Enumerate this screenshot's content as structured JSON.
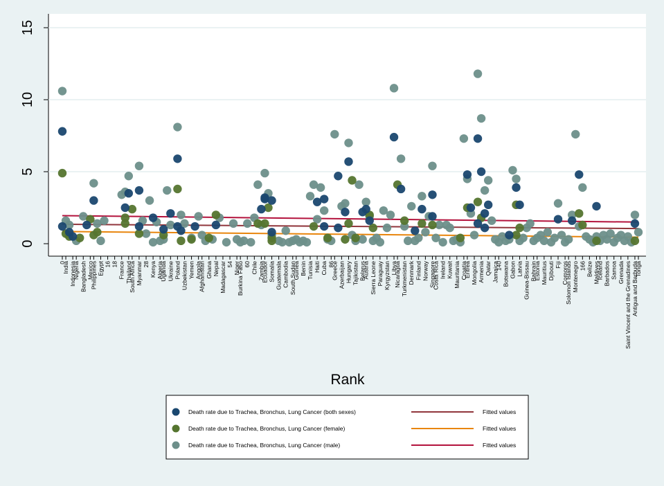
{
  "chart_data": {
    "type": "scatter",
    "xlabel": "Rank",
    "ylabel": "",
    "ylim": [
      0,
      15
    ],
    "yticks": [
      0,
      5,
      10,
      15
    ],
    "grid": true,
    "legend_position": "bottom",
    "x_tick_labels": [
      {
        "rank": 0,
        "label": "0"
      },
      {
        "rank": 1,
        "label": "India"
      },
      {
        "rank": 3,
        "label": "Indonesia"
      },
      {
        "rank": 4,
        "label": "Nigeria"
      },
      {
        "rank": 6,
        "label": "Bangladesh"
      },
      {
        "rank": 8,
        "label": "Mexico"
      },
      {
        "rank": 9,
        "label": "Philippines"
      },
      {
        "rank": 11,
        "label": "Egypt"
      },
      {
        "rank": 13,
        "label": "16"
      },
      {
        "rank": 15,
        "label": "18"
      },
      {
        "rank": 17,
        "label": "France"
      },
      {
        "rank": 19,
        "label": "Thailand"
      },
      {
        "rank": 20,
        "label": "South Africa"
      },
      {
        "rank": 22,
        "label": "Myanmar"
      },
      {
        "rank": 24,
        "label": "28"
      },
      {
        "rank": 26,
        "label": "Kenya"
      },
      {
        "rank": 28,
        "label": "Algeria"
      },
      {
        "rank": 29,
        "label": "Uganda"
      },
      {
        "rank": 31,
        "label": "Ukraine"
      },
      {
        "rank": 33,
        "label": "Poland"
      },
      {
        "rank": 35,
        "label": "Uzbekistan"
      },
      {
        "rank": 37,
        "label": "Yemen"
      },
      {
        "rank": 39,
        "label": "Angola"
      },
      {
        "rank": 40,
        "label": "Afghanistan"
      },
      {
        "rank": 42,
        "label": "Ghana"
      },
      {
        "rank": 44,
        "label": "Nepal"
      },
      {
        "rank": 46,
        "label": "Madagascar"
      },
      {
        "rank": 48,
        "label": "54"
      },
      {
        "rank": 50,
        "label": "Niger"
      },
      {
        "rank": 51,
        "label": "Burkina Faso"
      },
      {
        "rank": 53,
        "label": "60"
      },
      {
        "rank": 55,
        "label": "Chile"
      },
      {
        "rank": 57,
        "label": "Zambia"
      },
      {
        "rank": 58,
        "label": "Ecuador"
      },
      {
        "rank": 60,
        "label": "Somalia"
      },
      {
        "rank": 62,
        "label": "Guatemala"
      },
      {
        "rank": 64,
        "label": "Cambodia"
      },
      {
        "rank": 66,
        "label": "South Sudan"
      },
      {
        "rank": 67,
        "label": "Guinea"
      },
      {
        "rank": 69,
        "label": "Benin"
      },
      {
        "rank": 71,
        "label": "Tunisia"
      },
      {
        "rank": 73,
        "label": "Haiti"
      },
      {
        "rank": 75,
        "label": "Cuba"
      },
      {
        "rank": 77,
        "label": "86"
      },
      {
        "rank": 78,
        "label": "Greece"
      },
      {
        "rank": 80,
        "label": "Azerbaijan"
      },
      {
        "rank": 82,
        "label": "Hungary"
      },
      {
        "rank": 84,
        "label": "Tajikistan"
      },
      {
        "rank": 86,
        "label": "Belarus"
      },
      {
        "rank": 87,
        "label": "Austria"
      },
      {
        "rank": 89,
        "label": "Sierra Leone"
      },
      {
        "rank": 91,
        "label": "Paraguay"
      },
      {
        "rank": 93,
        "label": "Kyrgyzstan"
      },
      {
        "rank": 95,
        "label": "Libya"
      },
      {
        "rank": 96,
        "label": "Nicaragua"
      },
      {
        "rank": 98,
        "label": "Turkmenistan"
      },
      {
        "rank": 100,
        "label": "Denmark"
      },
      {
        "rank": 102,
        "label": "Finland"
      },
      {
        "rank": 104,
        "label": "Norway"
      },
      {
        "rank": 106,
        "label": "Singapore"
      },
      {
        "rank": 107,
        "label": "Costa Rica"
      },
      {
        "rank": 109,
        "label": "Ireland"
      },
      {
        "rank": 111,
        "label": "Kuwait"
      },
      {
        "rank": 113,
        "label": "Mauritania"
      },
      {
        "rank": 115,
        "label": "Croatia"
      },
      {
        "rank": 116,
        "label": "Eritrea"
      },
      {
        "rank": 118,
        "label": "Mongolia"
      },
      {
        "rank": 120,
        "label": "Armenia"
      },
      {
        "rank": 122,
        "label": "Qatar"
      },
      {
        "rank": 124,
        "label": "Jamaica"
      },
      {
        "rank": 125,
        "label": "140"
      },
      {
        "rank": 127,
        "label": "Botswana"
      },
      {
        "rank": 129,
        "label": "Gabon"
      },
      {
        "rank": 131,
        "label": "Latvia"
      },
      {
        "rank": 133,
        "label": "Guinea-Bissau"
      },
      {
        "rank": 135,
        "label": "Bahrain"
      },
      {
        "rank": 136,
        "label": "Estonia"
      },
      {
        "rank": 138,
        "label": "Mauritius"
      },
      {
        "rank": 140,
        "label": "Djibouti"
      },
      {
        "rank": 142,
        "label": "Fiji"
      },
      {
        "rank": 144,
        "label": "Comoros"
      },
      {
        "rank": 145,
        "label": "Solomon Islands"
      },
      {
        "rank": 147,
        "label": "Montenegro"
      },
      {
        "rank": 149,
        "label": "166"
      },
      {
        "rank": 151,
        "label": "Belize"
      },
      {
        "rank": 153,
        "label": "Maldives"
      },
      {
        "rank": 154,
        "label": "Iceland"
      },
      {
        "rank": 156,
        "label": "Barbados"
      },
      {
        "rank": 158,
        "label": "Samoa"
      },
      {
        "rank": 160,
        "label": "Grenada"
      },
      {
        "rank": 162,
        "label": "Saint Vincent and the Grenadines"
      },
      {
        "rank": 164,
        "label": "Antigua and Barbuda"
      },
      {
        "rank": 165,
        "label": "Tonga"
      }
    ],
    "series": [
      {
        "name": "Death rate due to Trachea, Bronchus, Lung Cancer (both sexes)",
        "color": "#1a476f",
        "x": [
          0,
          0,
          2,
          3,
          7,
          9,
          18,
          19,
          22,
          22,
          26,
          29,
          31,
          33,
          33,
          34,
          38,
          44,
          57,
          58,
          58,
          60,
          60,
          73,
          75,
          75,
          79,
          79,
          81,
          82,
          86,
          87,
          88,
          95,
          97,
          101,
          103,
          106,
          106,
          116,
          117,
          119,
          119,
          120,
          121,
          121,
          122,
          128,
          130,
          131,
          142,
          146,
          148,
          153,
          164
        ],
        "y": [
          7.8,
          1.2,
          0.8,
          0.5,
          1.3,
          3.0,
          2.5,
          3.5,
          3.7,
          1.2,
          1.8,
          1.0,
          2.1,
          5.9,
          1.2,
          0.9,
          1.2,
          1.3,
          2.4,
          3.2,
          3.1,
          3.0,
          0.8,
          2.9,
          3.1,
          1.2,
          4.7,
          1.1,
          2.2,
          5.7,
          2.2,
          2.4,
          1.6,
          7.4,
          3.8,
          0.9,
          2.4,
          3.4,
          1.9,
          4.8,
          2.5,
          1.4,
          7.3,
          5.0,
          2.1,
          1.1,
          2.7,
          0.6,
          3.9,
          2.7,
          1.7,
          1.6,
          4.8,
          2.6,
          1.4
        ]
      },
      {
        "name": "Death rate due to Trachea, Bronchus, Lung Cancer (female)",
        "color": "#55752f",
        "x": [
          0,
          1,
          2,
          5,
          8,
          9,
          10,
          18,
          18,
          20,
          22,
          29,
          33,
          34,
          37,
          42,
          44,
          56,
          58,
          59,
          60,
          60,
          72,
          76,
          81,
          82,
          83,
          84,
          88,
          89,
          96,
          98,
          103,
          106,
          114,
          116,
          119,
          120,
          130,
          130,
          131,
          148,
          149,
          153,
          164
        ],
        "y": [
          4.9,
          0.7,
          0.5,
          0.4,
          1.7,
          0.6,
          0.8,
          1.8,
          1.4,
          2.4,
          0.7,
          0.6,
          3.8,
          0.2,
          0.3,
          0.4,
          2.0,
          1.4,
          1.4,
          2.5,
          0.4,
          0.2,
          1.2,
          0.4,
          0.3,
          1.4,
          4.4,
          0.4,
          2.0,
          1.1,
          4.1,
          1.6,
          1.4,
          1.3,
          0.4,
          2.5,
          2.9,
          1.8,
          0.6,
          2.7,
          1.1,
          2.1,
          1.3,
          0.2,
          0.2
        ]
      },
      {
        "name": "Death rate due to Trachea, Bronchus, Lung Cancer (male)",
        "color": "#6d8f8a",
        "x": [
          0,
          1,
          2,
          4,
          6,
          9,
          10,
          11,
          12,
          17,
          18,
          19,
          22,
          23,
          24,
          25,
          26,
          27,
          28,
          29,
          30,
          31,
          33,
          34,
          35,
          37,
          39,
          40,
          41,
          43,
          45,
          47,
          49,
          50,
          51,
          52,
          53,
          54,
          55,
          56,
          57,
          58,
          59,
          60,
          62,
          63,
          64,
          65,
          66,
          67,
          68,
          69,
          70,
          71,
          72,
          73,
          74,
          75,
          76,
          77,
          78,
          80,
          81,
          82,
          83,
          84,
          85,
          86,
          87,
          88,
          89,
          90,
          91,
          92,
          93,
          94,
          95,
          97,
          98,
          99,
          100,
          101,
          102,
          103,
          104,
          105,
          106,
          107,
          108,
          109,
          110,
          111,
          112,
          113,
          114,
          115,
          116,
          117,
          118,
          119,
          120,
          121,
          122,
          123,
          124,
          125,
          126,
          127,
          128,
          129,
          130,
          131,
          132,
          133,
          134,
          135,
          136,
          137,
          138,
          139,
          140,
          141,
          142,
          143,
          144,
          145,
          146,
          147,
          148,
          149,
          150,
          151,
          152,
          153,
          154,
          155,
          156,
          157,
          158,
          159,
          160,
          161,
          162,
          163,
          164,
          165
        ],
        "y": [
          10.6,
          1.6,
          1.3,
          0.2,
          1.9,
          4.2,
          1.4,
          0.2,
          1.6,
          3.4,
          3.6,
          4.7,
          5.4,
          1.6,
          0.7,
          3.0,
          0.1,
          1.5,
          0.2,
          0.3,
          3.7,
          1.3,
          8.1,
          2.0,
          1.4,
          0.4,
          1.9,
          0.6,
          0.2,
          0.3,
          1.8,
          0.1,
          1.4,
          0.3,
          0.1,
          0.2,
          1.4,
          0.1,
          1.8,
          4.1,
          1.3,
          4.9,
          3.5,
          0.6,
          0.2,
          0.1,
          0.9,
          0.1,
          0.2,
          0.3,
          0.1,
          0.2,
          0.1,
          3.3,
          4.1,
          1.7,
          3.9,
          2.3,
          0.3,
          0.2,
          7.6,
          2.6,
          2.8,
          7.0,
          0.6,
          0.2,
          4.1,
          0.3,
          2.9,
          1.9,
          0.2,
          0.4,
          0.1,
          2.3,
          1.1,
          2.0,
          10.8,
          5.9,
          1.2,
          0.2,
          2.6,
          0.2,
          0.4,
          3.3,
          0.8,
          1.9,
          5.4,
          0.4,
          1.3,
          0.1,
          1.3,
          1.1,
          0.2,
          0.3,
          0.1,
          7.3,
          4.5,
          2.1,
          0.6,
          11.8,
          8.7,
          3.7,
          4.4,
          1.6,
          0.3,
          0.1,
          0.5,
          0.2,
          0.3,
          5.1,
          4.5,
          0.2,
          0.4,
          1.1,
          1.4,
          0.2,
          0.4,
          0.6,
          0.2,
          0.8,
          0.1,
          0.4,
          2.8,
          0.6,
          0.1,
          0.3,
          2.0,
          7.6,
          1.2,
          3.9,
          0.5,
          0.3,
          0.1,
          0.5,
          0.2,
          0.6,
          0.3,
          0.7,
          0.1,
          0.4,
          0.6,
          0.2,
          0.5,
          0.1,
          2.0,
          0.8
        ]
      }
    ],
    "fitted": [
      {
        "label": "Fitted values",
        "color": "#90353b",
        "from": [
          0,
          1.35
        ],
        "to": [
          165,
          1.05
        ]
      },
      {
        "label": "Fitted values",
        "color": "#e8850c",
        "from": [
          0,
          0.85
        ],
        "to": [
          165,
          0.45
        ]
      },
      {
        "label": "Fitted values",
        "color": "#b3123c",
        "from": [
          0,
          1.95
        ],
        "to": [
          165,
          1.5
        ]
      }
    ]
  }
}
